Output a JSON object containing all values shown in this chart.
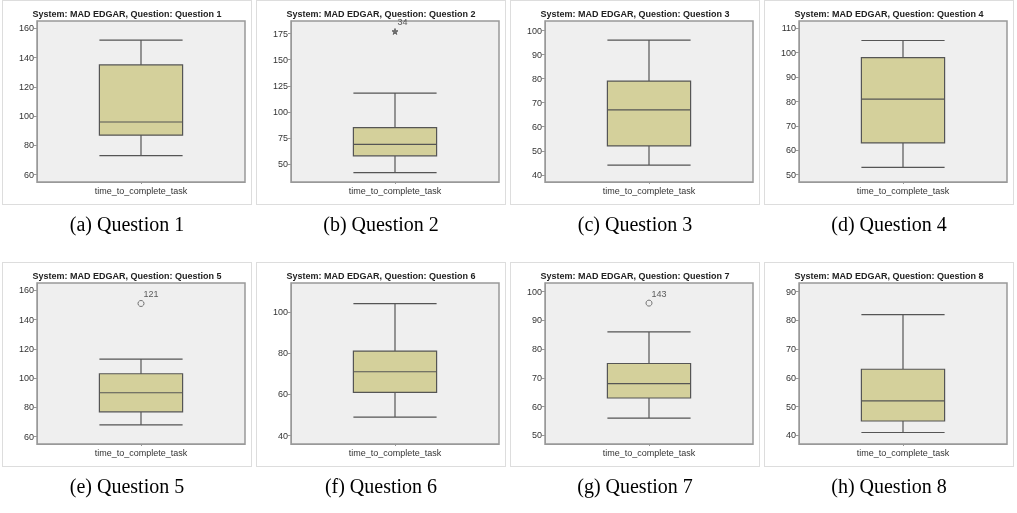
{
  "chart_data": [
    {
      "type": "box",
      "title": "System: MAD EDGAR, Question: Question 1",
      "categories": [
        "time_to_complete_task"
      ],
      "series": [
        {
          "color": "#d4d09b",
          "boxes": [
            {
              "low": 73,
              "q1": 87,
              "median": 96,
              "q3": 135,
              "high": 152
            }
          ]
        }
      ],
      "ylim": [
        55,
        165
      ],
      "yticks": [
        60,
        80,
        100,
        120,
        140,
        160
      ],
      "annotations": [
        "(a) Question 1"
      ]
    },
    {
      "type": "box",
      "title": "System: MAD EDGAR, Question: Question 2",
      "categories": [
        "time_to_complete_task"
      ],
      "series": [
        {
          "color": "#d4d09b",
          "boxes": [
            {
              "low": 42,
              "q1": 58,
              "median": 69,
              "q3": 85,
              "high": 118,
              "outliers": [
                177
              ]
            }
          ]
        }
      ],
      "marker": "star",
      "ylim": [
        33,
        187
      ],
      "yticks": [
        50,
        75,
        100,
        125,
        150,
        175
      ],
      "annotations": [
        "(b) Question 2",
        "34"
      ]
    },
    {
      "type": "box",
      "title": "System: MAD EDGAR, Question: Question 3",
      "categories": [
        "time_to_complete_task"
      ],
      "series": [
        {
          "color": "#d4d09b",
          "boxes": [
            {
              "low": 44,
              "q1": 52,
              "median": 67,
              "q3": 79,
              "high": 96
            }
          ]
        }
      ],
      "ylim": [
        37,
        104
      ],
      "yticks": [
        40,
        50,
        60,
        70,
        80,
        90,
        100
      ],
      "annotations": [
        "(c) Question 3"
      ]
    },
    {
      "type": "box",
      "title": "System: MAD EDGAR, Question: Question 4",
      "categories": [
        "time_to_complete_task"
      ],
      "series": [
        {
          "color": "#d4d09b",
          "boxes": [
            {
              "low": 53,
              "q1": 63,
              "median": 81,
              "q3": 98,
              "high": 105
            }
          ]
        }
      ],
      "ylim": [
        47,
        113
      ],
      "yticks": [
        50,
        60,
        70,
        80,
        90,
        100,
        110
      ],
      "annotations": [
        "(d) Question 4"
      ]
    },
    {
      "type": "box",
      "title": "System: MAD EDGAR, Question: Question 5",
      "categories": [
        "time_to_complete_task"
      ],
      "series": [
        {
          "color": "#d4d09b",
          "boxes": [
            {
              "low": 68,
              "q1": 77,
              "median": 90,
              "q3": 103,
              "high": 113,
              "outliers": [
                151
              ]
            }
          ]
        }
      ],
      "marker": "circle",
      "ylim": [
        55,
        165
      ],
      "yticks": [
        60,
        80,
        100,
        120,
        140,
        160
      ],
      "annotations": [
        "(e) Question 5",
        "121"
      ]
    },
    {
      "type": "box",
      "title": "System: MAD EDGAR, Question: Question 6",
      "categories": [
        "time_to_complete_task"
      ],
      "series": [
        {
          "color": "#d4d09b",
          "boxes": [
            {
              "low": 49,
              "q1": 61,
              "median": 71,
              "q3": 81,
              "high": 104
            }
          ]
        }
      ],
      "ylim": [
        36,
        114
      ],
      "yticks": [
        40,
        60,
        80,
        100
      ],
      "annotations": [
        "(f) Question 6"
      ]
    },
    {
      "type": "box",
      "title": "System: MAD EDGAR, Question: Question 7",
      "categories": [
        "time_to_complete_task"
      ],
      "series": [
        {
          "color": "#d4d09b",
          "boxes": [
            {
              "low": 56,
              "q1": 63,
              "median": 68,
              "q3": 75,
              "high": 86,
              "outliers": [
                96
              ]
            }
          ]
        }
      ],
      "marker": "circle",
      "ylim": [
        47,
        103
      ],
      "yticks": [
        50,
        60,
        70,
        80,
        90,
        100
      ],
      "annotations": [
        "(g) Question 7",
        "143"
      ]
    },
    {
      "type": "box",
      "title": "System: MAD EDGAR, Question: Question 8",
      "categories": [
        "time_to_complete_task"
      ],
      "series": [
        {
          "color": "#d4d09b",
          "boxes": [
            {
              "low": 41,
              "q1": 45,
              "median": 52,
              "q3": 63,
              "high": 82
            }
          ]
        }
      ],
      "ylim": [
        37,
        93
      ],
      "yticks": [
        40,
        50,
        60,
        70,
        80,
        90
      ],
      "annotations": [
        "(h) Question 8"
      ]
    }
  ]
}
